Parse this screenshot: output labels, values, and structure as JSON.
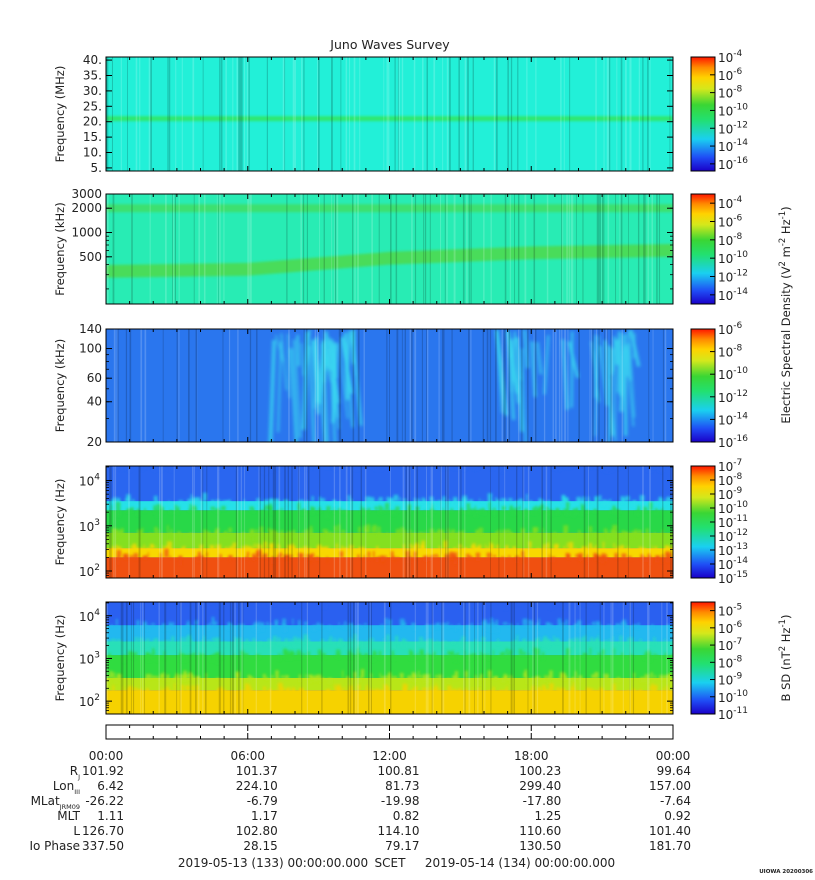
{
  "title": "Juno Waves Survey",
  "chart_data": [
    {
      "type": "heatmap",
      "name": "panel-hfr-high",
      "ylabel": "Frequency (MHz)",
      "yscale": "linear",
      "ylim": [
        4,
        41
      ],
      "yticks": [
        5,
        10,
        15,
        20,
        25,
        30,
        35,
        40
      ],
      "ytick_labels": [
        "5.",
        "10.",
        "15.",
        "20.",
        "25.",
        "30.",
        "35.",
        "40."
      ],
      "colorbar": {
        "range_exponents": [
          -16.8,
          -4
        ],
        "tick_exponents": [
          -4,
          -6,
          -8,
          -10,
          -12,
          -14,
          -16
        ],
        "label": ""
      },
      "background_color": "#22f0d8",
      "features": [
        {
          "kind": "horizontal-band",
          "y_center": 21,
          "y_width": 1.6,
          "color": "#2ee86e",
          "intensity": "strong"
        }
      ]
    },
    {
      "type": "heatmap",
      "name": "panel-hfr-low",
      "ylabel": "Frequency (kHz)",
      "yscale": "log",
      "ylim": [
        130,
        3000
      ],
      "yticks": [
        500,
        1000,
        2000,
        3000
      ],
      "ytick_labels": [
        "500",
        "1000",
        "2000",
        "3000"
      ],
      "colorbar": {
        "range_exponents": [
          -15,
          -3
        ],
        "tick_exponents": [
          -4,
          -6,
          -8,
          -10,
          -12,
          -14
        ],
        "label": "Electric Spectral Density (V2 m-2 Hz-1)"
      },
      "background_color": "#28ecb4",
      "features": [
        {
          "kind": "horizontal-band",
          "y_center": 2000,
          "y_width_factor": 1.12,
          "color": "#3ee070",
          "intensity": "strong"
        },
        {
          "kind": "drifting-band",
          "points": [
            [
              0,
              330
            ],
            [
              6,
              350
            ],
            [
              12,
              480
            ],
            [
              18,
              560
            ],
            [
              24,
              600
            ]
          ],
          "y_width_factor": 1.2,
          "color": "#48dc5a",
          "intensity": "strong"
        }
      ]
    },
    {
      "type": "heatmap",
      "name": "panel-lfr-high",
      "ylabel": "Frequency (kHz)",
      "yscale": "log",
      "ylim": [
        20,
        140
      ],
      "yticks": [
        20,
        40,
        60,
        100,
        140
      ],
      "ytick_labels": [
        "20",
        "40",
        "60",
        "100",
        "140"
      ],
      "colorbar": {
        "range_exponents": [
          -16,
          -6
        ],
        "tick_exponents": [
          -6,
          -8,
          -10,
          -12,
          -14,
          -16
        ],
        "label": ""
      },
      "background_color": "#2a76ee",
      "features": [
        {
          "kind": "bursts",
          "t_start": 7.0,
          "t_end": 10.5,
          "color": "#3ad8f0"
        },
        {
          "kind": "bursts",
          "t_start": 16.5,
          "t_end": 22.5,
          "color": "#3ad8f0"
        }
      ]
    },
    {
      "type": "heatmap",
      "name": "panel-lfr-low",
      "ylabel": "Frequency (Hz)",
      "yscale": "log",
      "ylim": [
        70,
        21000
      ],
      "yticks": [
        100,
        1000,
        10000
      ],
      "ytick_exponents": [
        2,
        3,
        4
      ],
      "colorbar": {
        "range_exponents": [
          -15,
          -7
        ],
        "tick_exponents": [
          -7,
          -8,
          -9,
          -10,
          -11,
          -12,
          -13,
          -14,
          -15
        ],
        "label": ""
      },
      "background_color": "#2a66f0",
      "features": [
        {
          "kind": "layer",
          "y_from": 3500,
          "y_to": 21000,
          "color": "#2a66f0"
        },
        {
          "kind": "layer",
          "y_from": 2200,
          "y_to": 3500,
          "color": "#26e0e8"
        },
        {
          "kind": "layer",
          "y_from": 700,
          "y_to": 2200,
          "color": "#28d848"
        },
        {
          "kind": "layer",
          "y_from": 320,
          "y_to": 700,
          "color": "#84e020"
        },
        {
          "kind": "layer",
          "y_from": 200,
          "y_to": 320,
          "color": "#f8d800"
        },
        {
          "kind": "layer",
          "y_from": 70,
          "y_to": 200,
          "color": "#f05010"
        }
      ]
    },
    {
      "type": "heatmap",
      "name": "panel-magnetic",
      "ylabel": "Frequency (Hz)",
      "yscale": "log",
      "ylim": [
        50,
        21000
      ],
      "yticks": [
        100,
        1000,
        10000
      ],
      "ytick_exponents": [
        2,
        3,
        4
      ],
      "colorbar": {
        "range_exponents": [
          -11,
          -4.5
        ],
        "tick_exponents": [
          -5,
          -6,
          -7,
          -8,
          -9,
          -10,
          -11
        ],
        "label": "B SD (nT2 Hz-1)"
      },
      "background_color": "#2a66f0",
      "features": [
        {
          "kind": "layer",
          "y_from": 6000,
          "y_to": 21000,
          "color": "#2a60f0"
        },
        {
          "kind": "layer",
          "y_from": 2500,
          "y_to": 6000,
          "color": "#22b8f0"
        },
        {
          "kind": "layer",
          "y_from": 1200,
          "y_to": 2500,
          "color": "#28e0b8"
        },
        {
          "kind": "layer",
          "y_from": 350,
          "y_to": 1200,
          "color": "#30dc40"
        },
        {
          "kind": "layer",
          "y_from": 180,
          "y_to": 350,
          "color": "#b8e618"
        },
        {
          "kind": "layer",
          "y_from": 50,
          "y_to": 180,
          "color": "#f6d200"
        }
      ]
    }
  ],
  "time_axis": {
    "xlim_hours": [
      0,
      24
    ],
    "major_tick_hours": [
      0,
      6,
      12,
      18,
      24
    ],
    "tick_labels": [
      "00:00",
      "06:00",
      "12:00",
      "18:00",
      "00:00"
    ]
  },
  "ephemeris": {
    "rows": [
      {
        "label": "R",
        "sub": "J",
        "values": [
          "101.92",
          "101.37",
          "100.81",
          "100.23",
          "99.64"
        ]
      },
      {
        "label": "Lon",
        "sub": "III",
        "values": [
          "6.42",
          "224.10",
          "81.73",
          "299.40",
          "157.00"
        ]
      },
      {
        "label": "MLat",
        "sub": "JRM09",
        "values": [
          "-26.22",
          "-6.79",
          "-19.98",
          "-17.80",
          "-7.64"
        ]
      },
      {
        "label": "MLT",
        "sub": "",
        "values": [
          "1.11",
          "1.17",
          "0.82",
          "1.25",
          "0.92"
        ]
      },
      {
        "label": "L",
        "sub": "",
        "values": [
          "126.70",
          "102.80",
          "114.10",
          "110.60",
          "101.40"
        ]
      },
      {
        "label": "Io Phase",
        "sub": "",
        "values": [
          "337.50",
          "28.15",
          "79.17",
          "130.50",
          "181.70"
        ]
      }
    ]
  },
  "footer": {
    "start": "2019-05-13 (133) 00:00:00.000",
    "center": "SCET",
    "end": "2019-05-14 (134) 00:00:00.000"
  },
  "credit": "UIOWA 20200306"
}
